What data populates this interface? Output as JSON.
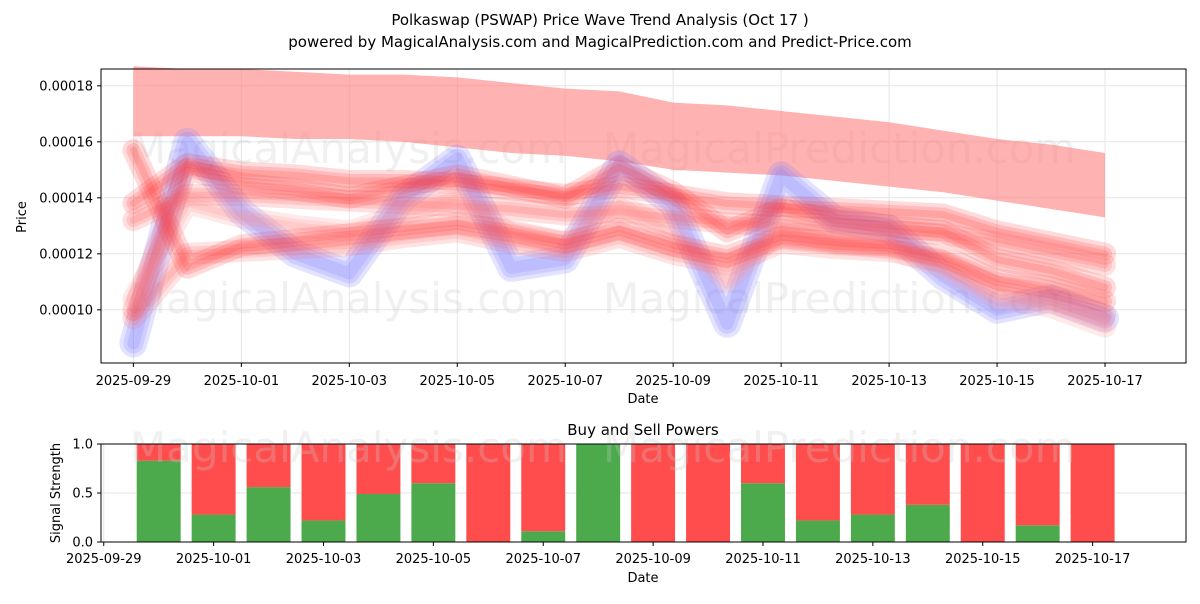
{
  "chart_data": [
    {
      "type": "line",
      "title": "Polkaswap (PSWAP) Price Wave Trend Analysis (Oct 17 )",
      "subtitle": "powered by MagicalAnalysis.com and MagicalPrediction.com and Predict-Price.com",
      "xlabel": "Date",
      "ylabel": "Price",
      "x_tick_labels": [
        "2025-09-29",
        "2025-10-01",
        "2025-10-03",
        "2025-10-05",
        "2025-10-07",
        "2025-10-09",
        "2025-10-11",
        "2025-10-13",
        "2025-10-15",
        "2025-10-17"
      ],
      "y_tick_labels": [
        "0.00010",
        "0.00012",
        "0.00014",
        "0.00016",
        "0.00018"
      ],
      "y_ticks": [
        0.0001,
        0.00012,
        0.00014,
        0.00016,
        0.00018
      ],
      "xlim": [
        -0.6,
        19.5
      ],
      "ylim": [
        8.1e-05,
        0.000186
      ],
      "grid": true,
      "x_days": [
        0,
        1,
        2,
        3,
        4,
        5,
        6,
        7,
        8,
        9,
        10,
        11,
        12,
        13,
        14,
        15,
        16,
        17,
        18
      ],
      "series": [
        {
          "name": "upper band",
          "color": "#ff7f7f",
          "upper": [
            0.000187,
            0.000186,
            0.000186,
            0.000185,
            0.000184,
            0.000184,
            0.000183,
            0.000181,
            0.000179,
            0.000178,
            0.000174,
            0.000173,
            0.000171,
            0.000169,
            0.000167,
            0.000164,
            0.000161,
            0.000159,
            0.000156
          ],
          "lower": [
            0.000162,
            0.000162,
            0.000162,
            0.000161,
            0.000161,
            0.00016,
            0.000158,
            0.000156,
            0.000155,
            0.000153,
            0.00015,
            0.000149,
            0.000148,
            0.000146,
            0.000144,
            0.000142,
            0.000139,
            0.000136,
            0.000133
          ]
        },
        {
          "name": "blue wave",
          "color": "#8080ff",
          "values": [
            8.8e-05,
            0.00016,
            0.000135,
            0.00012,
            0.000113,
            0.00014,
            0.000154,
            0.000115,
            0.000118,
            0.000152,
            0.000138,
            9.5e-05,
            0.000148,
            0.000132,
            0.000129,
            0.000112,
            0.0001,
            0.000104,
            9.7e-05
          ]
        },
        {
          "name": "red wave 1",
          "color": "#ff3333",
          "values": [
            0.0001,
            0.00015,
            0.000145,
            0.000143,
            0.00014,
            0.000144,
            0.000148,
            0.000144,
            0.00014,
            0.000151,
            0.000142,
            0.000128,
            0.000136,
            0.000132,
            0.00013,
            0.000128,
            0.000118,
            0.000114,
            0.000108
          ]
        },
        {
          "name": "red wave 2",
          "color": "#ff3333",
          "values": [
            0.000138,
            0.000152,
            0.000149,
            0.000148,
            0.000146,
            0.000146,
            0.000145,
            0.000143,
            0.000141,
            0.000144,
            0.000141,
            0.000138,
            0.000137,
            0.000136,
            0.000135,
            0.000134,
            0.000128,
            0.000124,
            0.00012
          ]
        },
        {
          "name": "red wave 3",
          "color": "#ff5555",
          "values": [
            0.000132,
            0.000141,
            0.000141,
            0.00014,
            0.000139,
            0.000138,
            0.000137,
            0.000136,
            0.000134,
            0.000135,
            0.000133,
            0.000131,
            0.00013,
            0.000129,
            0.000128,
            0.000127,
            0.000124,
            0.00012,
            0.000116
          ]
        },
        {
          "name": "red wave 4",
          "color": "#ff6666",
          "values": [
            9.7e-05,
            0.00012,
            0.000121,
            0.000122,
            0.000123,
            0.000126,
            0.000128,
            0.000124,
            0.000121,
            0.000126,
            0.00012,
            0.000116,
            0.000124,
            0.000122,
            0.000121,
            0.000117,
            0.000108,
            0.000104,
            9.8e-05
          ]
        },
        {
          "name": "red wave 5",
          "color": "#ff8888",
          "values": [
            0.000104,
            0.000138,
            0.000133,
            0.00013,
            0.000128,
            0.000134,
            0.00014,
            0.000127,
            0.000124,
            0.000138,
            0.000127,
            0.00011,
            0.000129,
            0.000124,
            0.000122,
            0.000115,
            0.000104,
            0.000101,
            9.4e-05
          ]
        },
        {
          "name": "red wave 6",
          "color": "#ff3333",
          "values": [
            0.000157,
            0.000115,
            0.000123,
            0.000125,
            0.000127,
            0.000129,
            0.000131,
            0.000128,
            0.000124,
            0.000129,
            0.000123,
            0.000119,
            0.000126,
            0.000124,
            0.000123,
            0.000119,
            0.000111,
            0.000108,
            0.000103
          ]
        }
      ]
    },
    {
      "type": "bar",
      "title": "Buy and Sell Powers",
      "xlabel": "Date",
      "ylabel": "Signal Strength",
      "x_tick_labels": [
        "2025-09-29",
        "2025-10-01",
        "2025-10-03",
        "2025-10-05",
        "2025-10-07",
        "2025-10-09",
        "2025-10-11",
        "2025-10-13",
        "2025-10-15",
        "2025-10-17"
      ],
      "y_tick_labels": [
        "0.0",
        "0.5",
        "1.0"
      ],
      "y_ticks": [
        0.0,
        0.5,
        1.0
      ],
      "ylim": [
        0,
        1
      ],
      "xlim": [
        -0.6,
        19.5
      ],
      "grid": true,
      "categories": [
        "2025-09-30",
        "2025-10-01",
        "2025-10-02",
        "2025-10-03",
        "2025-10-04",
        "2025-10-05",
        "2025-10-06",
        "2025-10-07",
        "2025-10-08",
        "2025-10-09",
        "2025-10-10",
        "2025-10-11",
        "2025-10-12",
        "2025-10-13",
        "2025-10-14",
        "2025-10-15",
        "2025-10-16",
        "2025-10-17"
      ],
      "series": [
        {
          "name": "Buy",
          "color": "#4caa4c",
          "values": [
            0.83,
            0.28,
            0.56,
            0.22,
            0.49,
            0.6,
            0.0,
            0.11,
            1.0,
            0.0,
            0.0,
            0.6,
            0.22,
            0.28,
            0.38,
            0.0,
            0.17,
            0.0
          ]
        },
        {
          "name": "Sell",
          "color": "#ff4c4c",
          "values": [
            0.17,
            0.72,
            0.44,
            0.78,
            0.51,
            0.4,
            1.0,
            0.89,
            0.0,
            1.0,
            1.0,
            0.4,
            0.78,
            0.72,
            0.62,
            1.0,
            0.83,
            1.0
          ]
        }
      ]
    }
  ],
  "watermarks": [
    "MagicalAnalysis.com",
    "MagicalPrediction.com"
  ]
}
